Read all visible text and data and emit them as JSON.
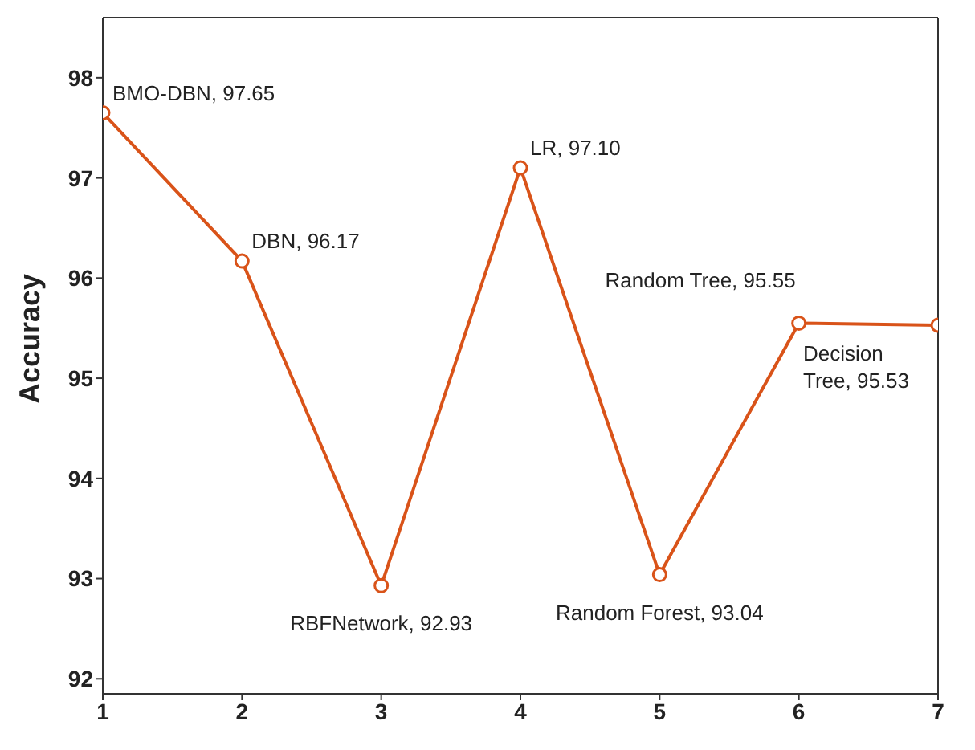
{
  "chart_data": {
    "type": "line",
    "ylabel": "Accuracy",
    "x": [
      1,
      2,
      3,
      4,
      5,
      6,
      7
    ],
    "series": [
      {
        "color": "#d95319",
        "values": [
          97.65,
          96.17,
          92.93,
          97.1,
          93.04,
          95.55,
          95.53
        ]
      }
    ],
    "xlim": [
      1,
      7
    ],
    "xticks": [
      1,
      2,
      3,
      4,
      5,
      6,
      7
    ],
    "ylim": [
      91.85,
      98.6
    ],
    "yticks": [
      92,
      93,
      94,
      95,
      96,
      97,
      98
    ],
    "marker": "circle",
    "line_style": "solid",
    "annotations": [
      {
        "text": "BMO-DBN, 97.65",
        "x": 1,
        "y": 97.65
      },
      {
        "text": "DBN, 96.17",
        "x": 2,
        "y": 96.17
      },
      {
        "text": "RBFNetwork, 92.93",
        "x": 3,
        "y": 92.93
      },
      {
        "text": "LR, 97.10",
        "x": 4,
        "y": 97.1
      },
      {
        "text": "Random Forest, 93.04",
        "x": 5,
        "y": 93.04
      },
      {
        "text": "Random Tree, 95.55",
        "x": 6,
        "y": 95.55
      },
      {
        "text": "Decision Tree, 95.53",
        "x": 7,
        "y": 95.53
      }
    ]
  }
}
